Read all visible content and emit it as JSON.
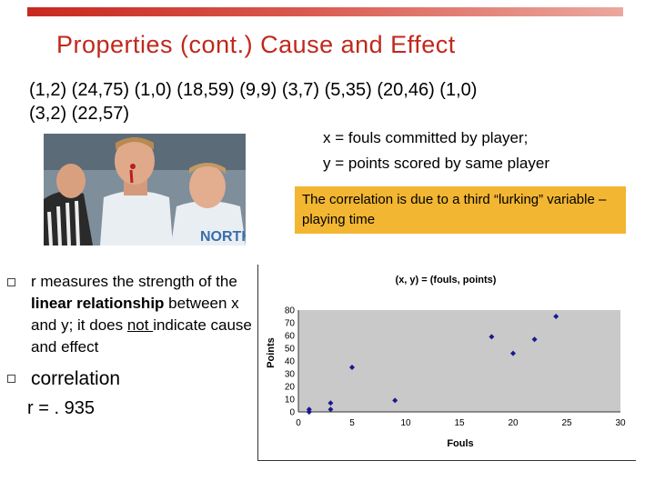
{
  "slide": {
    "title": "Properties (cont.)  Cause and Effect",
    "pairs_line1": "(1,2) (24,75) (1,0) (18,59) (9,9) (3,7) (5,35) (20,46) (1,0)",
    "pairs_line2": "(3,2) (22,57)",
    "definition_x": "x = fouls committed by player;",
    "definition_y": "y = points scored by same player",
    "note": "The correlation is due to a third “lurking” variable – playing time",
    "photo_caption": "NORTH",
    "bullet1_part1": "r measures the strength of the ",
    "bullet1_bold": "linear relationship",
    "bullet1_part2": " between x and y; it does ",
    "bullet1_underline": "not ",
    "bullet1_part3": "indicate cause and effect",
    "bullet2": "correlation",
    "r_value": "r = . 935",
    "colors": {
      "title": "#c0281c",
      "note_bg": "#f2b632",
      "plot_bg": "#c9c9c9",
      "marker": "#1a1a8c"
    }
  },
  "chart_data": {
    "type": "scatter",
    "title": "(x, y) = (fouls, points)",
    "xlabel": "Fouls",
    "ylabel": "Points",
    "xlim": [
      0,
      30
    ],
    "ylim": [
      0,
      80
    ],
    "xticks": [
      0,
      5,
      10,
      15,
      20,
      25,
      30
    ],
    "yticks": [
      0,
      10,
      20,
      30,
      40,
      50,
      60,
      70,
      80
    ],
    "grid": false,
    "points": [
      [
        1,
        2
      ],
      [
        24,
        75
      ],
      [
        1,
        0
      ],
      [
        18,
        59
      ],
      [
        9,
        9
      ],
      [
        3,
        7
      ],
      [
        5,
        35
      ],
      [
        20,
        46
      ],
      [
        1,
        0
      ],
      [
        3,
        2
      ],
      [
        22,
        57
      ]
    ]
  }
}
